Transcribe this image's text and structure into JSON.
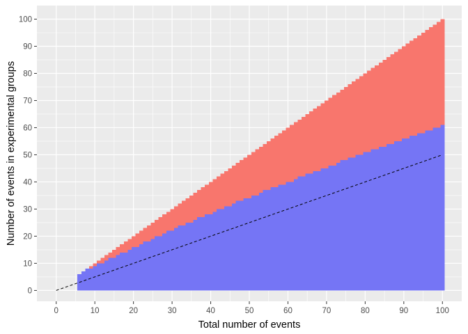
{
  "chart_data": {
    "type": "area",
    "xlabel": "Total number of events",
    "ylabel": "Number of events in experimental groups",
    "xlim": [
      -5,
      105
    ],
    "ylim": [
      -4,
      105
    ],
    "x_ticks": [
      0,
      10,
      20,
      30,
      40,
      50,
      60,
      70,
      80,
      90,
      100
    ],
    "y_ticks": [
      0,
      10,
      20,
      30,
      40,
      50,
      60,
      70,
      80,
      90,
      100
    ],
    "grid": true,
    "legend": "none",
    "x": [
      6,
      7,
      8,
      9,
      10,
      11,
      12,
      13,
      14,
      15,
      16,
      17,
      18,
      19,
      20,
      21,
      22,
      23,
      24,
      25,
      26,
      27,
      28,
      29,
      30,
      31,
      32,
      33,
      34,
      35,
      36,
      37,
      38,
      39,
      40,
      41,
      42,
      43,
      44,
      45,
      46,
      47,
      48,
      49,
      50,
      51,
      52,
      53,
      54,
      55,
      56,
      57,
      58,
      59,
      60,
      61,
      62,
      63,
      64,
      65,
      66,
      67,
      68,
      69,
      70,
      71,
      72,
      73,
      74,
      75,
      76,
      77,
      78,
      79,
      80,
      81,
      82,
      83,
      84,
      85,
      86,
      87,
      88,
      89,
      90,
      91,
      92,
      93,
      94,
      95,
      96,
      97,
      98,
      99,
      100
    ],
    "series": [
      {
        "color": "#F8766D",
        "values": [
          6,
          7,
          8,
          9,
          10,
          11,
          12,
          13,
          14,
          15,
          16,
          17,
          18,
          19,
          20,
          21,
          22,
          23,
          24,
          25,
          26,
          27,
          28,
          29,
          30,
          31,
          32,
          33,
          34,
          35,
          36,
          37,
          38,
          39,
          40,
          41,
          42,
          43,
          44,
          45,
          46,
          47,
          48,
          49,
          50,
          51,
          52,
          53,
          54,
          55,
          56,
          57,
          58,
          59,
          60,
          61,
          62,
          63,
          64,
          65,
          66,
          67,
          68,
          69,
          70,
          71,
          72,
          73,
          74,
          75,
          76,
          77,
          78,
          79,
          80,
          81,
          82,
          83,
          84,
          85,
          86,
          87,
          88,
          89,
          90,
          91,
          92,
          93,
          94,
          95,
          96,
          97,
          98,
          99,
          100
        ]
      },
      {
        "color": "#7575F5",
        "values": [
          6,
          7,
          8,
          8,
          9,
          10,
          10,
          11,
          12,
          12,
          13,
          14,
          14,
          15,
          16,
          16,
          17,
          18,
          18,
          19,
          20,
          20,
          21,
          22,
          22,
          23,
          24,
          24,
          25,
          25,
          26,
          27,
          27,
          28,
          28,
          29,
          30,
          30,
          31,
          31,
          32,
          33,
          33,
          34,
          34,
          35,
          35,
          36,
          37,
          37,
          38,
          38,
          39,
          39,
          40,
          40,
          41,
          42,
          42,
          43,
          43,
          44,
          44,
          45,
          45,
          46,
          46,
          47,
          48,
          48,
          49,
          49,
          50,
          50,
          51,
          51,
          52,
          52,
          53,
          53,
          54,
          54,
          55,
          55,
          56,
          56,
          57,
          57,
          58,
          58,
          59,
          59,
          60,
          60,
          61
        ]
      }
    ],
    "reference_line": {
      "style": "dashed",
      "color": "#000000",
      "x": [
        0,
        100
      ],
      "y": [
        0,
        50
      ]
    },
    "colors": {
      "panel_background": "#EBEBEB",
      "grid": "#FFFFFF"
    }
  }
}
